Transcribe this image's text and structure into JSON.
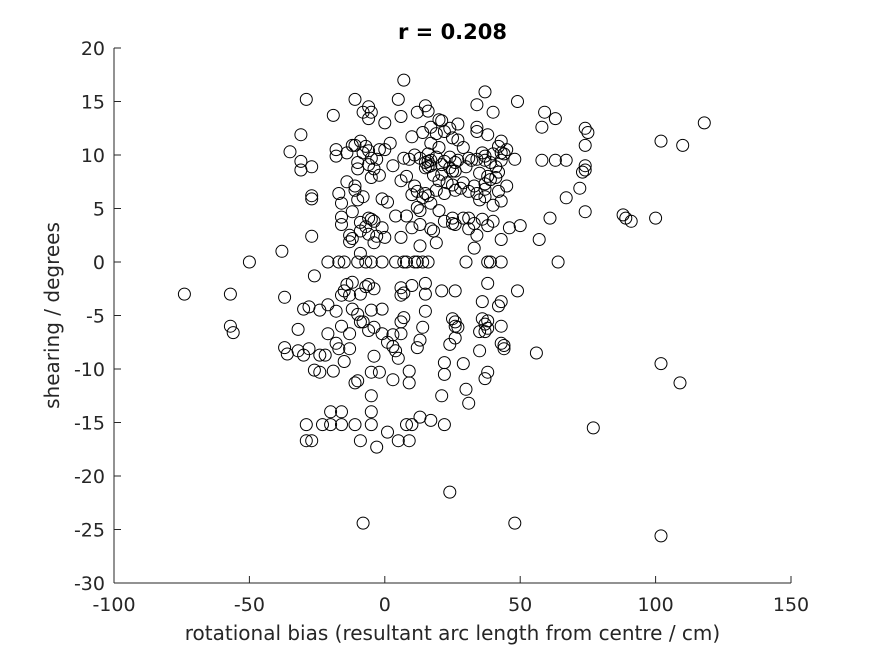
{
  "chart_data": {
    "type": "scatter",
    "title": "r = 0.208",
    "xlabel": "rotational bias (resultant arc length from centre / cm)",
    "ylabel": "shearing / degrees",
    "xlim": [
      -100,
      150
    ],
    "ylim": [
      -30,
      20
    ],
    "xticks": [
      -100,
      -50,
      0,
      50,
      100,
      150
    ],
    "xtick_labels": [
      "-100",
      "-50",
      "0",
      "50",
      "100",
      "150"
    ],
    "yticks": [
      -30,
      -25,
      -20,
      -15,
      -10,
      -5,
      0,
      5,
      10,
      15,
      20
    ],
    "ytick_labels": [
      "-30",
      "-25",
      "-20",
      "-15",
      "-10",
      "-5",
      "0",
      "5",
      "10",
      "15",
      "20"
    ],
    "grid": false,
    "marker": "open-circle",
    "marker_color": "#000000",
    "axis_color": "#262626",
    "points": [
      [
        -74,
        -3
      ],
      [
        -57,
        -3
      ],
      [
        -57,
        -6
      ],
      [
        -56,
        -6.6
      ],
      [
        -50,
        0
      ],
      [
        -38,
        1
      ],
      [
        -37,
        -3.3
      ],
      [
        -37,
        -8
      ],
      [
        -36,
        -8.6
      ],
      [
        -35,
        10.3
      ],
      [
        -32,
        -8.3
      ],
      [
        -32,
        -6.3
      ],
      [
        -31,
        11.9
      ],
      [
        -31,
        9.4
      ],
      [
        -31,
        8.6
      ],
      [
        -30,
        -8.7
      ],
      [
        -30,
        -4.4
      ],
      [
        -29,
        15.2
      ],
      [
        -29,
        -15.2
      ],
      [
        -29,
        -16.7
      ],
      [
        -28,
        -8.1
      ],
      [
        -28,
        -4.2
      ],
      [
        -27,
        -16.7
      ],
      [
        -27,
        6.2
      ],
      [
        -27,
        5.9
      ],
      [
        -27,
        2.4
      ],
      [
        -27,
        8.9
      ],
      [
        -26,
        -1.3
      ],
      [
        -26,
        -10.1
      ],
      [
        -24,
        -10.3
      ],
      [
        -24,
        -8.7
      ],
      [
        -24,
        -4.5
      ],
      [
        -23,
        -15.2
      ],
      [
        -22,
        -8.7
      ],
      [
        -21,
        0
      ],
      [
        -21,
        -4
      ],
      [
        -21,
        -6.7
      ],
      [
        -20,
        -14
      ],
      [
        -20,
        -15.2
      ],
      [
        -19,
        13.7
      ],
      [
        -19,
        -10.2
      ],
      [
        -18,
        9.9
      ],
      [
        -18,
        10.5
      ],
      [
        -18,
        -4.6
      ],
      [
        -18,
        -7.6
      ],
      [
        -17,
        6.4
      ],
      [
        -17,
        0
      ],
      [
        -17,
        -8.1
      ],
      [
        -16,
        4.2
      ],
      [
        -16,
        3.5
      ],
      [
        -16,
        5.5
      ],
      [
        -16,
        -3.1
      ],
      [
        -16,
        -6
      ],
      [
        -16,
        -14
      ],
      [
        -16,
        -15.2
      ],
      [
        -15,
        0
      ],
      [
        -15,
        -2.7
      ],
      [
        -15,
        -9.3
      ],
      [
        -14,
        10.2
      ],
      [
        -14,
        -2.1
      ],
      [
        -14,
        7.5
      ],
      [
        -13,
        2.5
      ],
      [
        -13,
        1.9
      ],
      [
        -13,
        -3.1
      ],
      [
        -13,
        -6.7
      ],
      [
        -13,
        -8.1
      ],
      [
        -12,
        10.9
      ],
      [
        -12,
        2.2
      ],
      [
        -12,
        4.7
      ],
      [
        -12,
        -1.9
      ],
      [
        -12,
        -4.4
      ],
      [
        -11,
        15.2
      ],
      [
        -11,
        10.9
      ],
      [
        -11,
        7.1
      ],
      [
        -11,
        6.7
      ],
      [
        -11,
        -11.3
      ],
      [
        -11,
        -15.2
      ],
      [
        -10,
        9.3
      ],
      [
        -10,
        8.7
      ],
      [
        -10,
        5.8
      ],
      [
        -10,
        0
      ],
      [
        -10,
        -11.1
      ],
      [
        -10,
        -4.9
      ],
      [
        -9,
        11.3
      ],
      [
        -9,
        3.7
      ],
      [
        -9,
        2.9
      ],
      [
        -9,
        0.8
      ],
      [
        -9,
        -3
      ],
      [
        -9,
        -5.6
      ],
      [
        -9,
        -16.7
      ],
      [
        -8,
        14
      ],
      [
        -8,
        10.2
      ],
      [
        -8,
        6.1
      ],
      [
        -8,
        -24.4
      ],
      [
        -8,
        -5.6
      ],
      [
        -7,
        10.8
      ],
      [
        -7,
        3.3
      ],
      [
        -7,
        0
      ],
      [
        -7,
        -2.3
      ],
      [
        -6,
        14.5
      ],
      [
        -6,
        13.4
      ],
      [
        -6,
        10.4
      ],
      [
        -6,
        9.1
      ],
      [
        -6,
        4.1
      ],
      [
        -6,
        2.6
      ],
      [
        -6,
        -2.1
      ],
      [
        -6,
        -6.4
      ],
      [
        -5,
        14
      ],
      [
        -5,
        9.7
      ],
      [
        -5,
        7.9
      ],
      [
        -5,
        4
      ],
      [
        -5,
        0
      ],
      [
        -5,
        -4.5
      ],
      [
        -5,
        -10.3
      ],
      [
        -5,
        -14
      ],
      [
        -5,
        -15.2
      ],
      [
        -5,
        -12.5
      ],
      [
        -4,
        8.7
      ],
      [
        -4,
        3.8
      ],
      [
        -4,
        1.8
      ],
      [
        -4,
        -2.5
      ],
      [
        -4,
        -6.1
      ],
      [
        -4,
        -8.8
      ],
      [
        -3,
        9.6
      ],
      [
        -3,
        2.4
      ],
      [
        -3,
        -17.3
      ],
      [
        -2,
        10.5
      ],
      [
        -2,
        8.1
      ],
      [
        -2,
        -10.3
      ],
      [
        -1,
        5.9
      ],
      [
        -1,
        3.2
      ],
      [
        -1,
        0
      ],
      [
        -1,
        -4.4
      ],
      [
        -1,
        -6.7
      ],
      [
        0,
        13
      ],
      [
        0,
        10.5
      ],
      [
        0,
        2.3
      ],
      [
        1,
        5.6
      ],
      [
        1,
        -7.5
      ],
      [
        1,
        -15.9
      ],
      [
        2,
        11.1
      ],
      [
        3,
        9
      ],
      [
        3,
        -6.8
      ],
      [
        3,
        -7.9
      ],
      [
        3,
        -11
      ],
      [
        4,
        4.3
      ],
      [
        4,
        0
      ],
      [
        4,
        -8.3
      ],
      [
        5,
        15.2
      ],
      [
        5,
        -9
      ],
      [
        5,
        -16.7
      ],
      [
        6,
        13.6
      ],
      [
        6,
        7.6
      ],
      [
        6,
        2.3
      ],
      [
        6,
        -2.4
      ],
      [
        6,
        -3.1
      ],
      [
        6,
        -5.6
      ],
      [
        6,
        -6.7
      ],
      [
        7,
        17
      ],
      [
        7,
        9.7
      ],
      [
        7,
        0
      ],
      [
        7,
        -2.9
      ],
      [
        7,
        -5.2
      ],
      [
        8,
        8
      ],
      [
        8,
        4.3
      ],
      [
        8,
        0
      ],
      [
        8,
        -15.2
      ],
      [
        9,
        9.6
      ],
      [
        9,
        -11.3
      ],
      [
        9,
        -16.7
      ],
      [
        9,
        -10.2
      ],
      [
        10,
        11.7
      ],
      [
        10,
        6.3
      ],
      [
        10,
        3.2
      ],
      [
        10,
        -2.2
      ],
      [
        10,
        -15.2
      ],
      [
        11,
        10
      ],
      [
        11,
        7.1
      ],
      [
        11,
        0
      ],
      [
        12,
        14
      ],
      [
        12,
        6.6
      ],
      [
        12,
        5.1
      ],
      [
        12,
        0
      ],
      [
        12,
        -8
      ],
      [
        13,
        9.7
      ],
      [
        13,
        4.8
      ],
      [
        13,
        3.5
      ],
      [
        13,
        1.5
      ],
      [
        13,
        -7.3
      ],
      [
        13,
        -14.5
      ],
      [
        14,
        12.1
      ],
      [
        14,
        6
      ],
      [
        14,
        0
      ],
      [
        14,
        -6.1
      ],
      [
        15,
        14.6
      ],
      [
        15,
        9.3
      ],
      [
        15,
        8.8
      ],
      [
        15,
        6.4
      ],
      [
        15,
        -2
      ],
      [
        15,
        -3
      ],
      [
        15,
        -4.6
      ],
      [
        16,
        14.1
      ],
      [
        16,
        10.1
      ],
      [
        16,
        9.4
      ],
      [
        16,
        8.9
      ],
      [
        16,
        6.2
      ],
      [
        16,
        0
      ],
      [
        17,
        12.6
      ],
      [
        17,
        11.1
      ],
      [
        17,
        9.5
      ],
      [
        17,
        9
      ],
      [
        17,
        5.5
      ],
      [
        17,
        3.1
      ],
      [
        17,
        -14.8
      ],
      [
        18,
        8.1
      ],
      [
        18,
        2.9
      ],
      [
        19,
        12
      ],
      [
        19,
        9.8
      ],
      [
        19,
        6.7
      ],
      [
        19,
        1.8
      ],
      [
        20,
        13.3
      ],
      [
        20,
        10.7
      ],
      [
        20,
        7.6
      ],
      [
        20,
        4.8
      ],
      [
        21,
        13.2
      ],
      [
        21,
        9.1
      ],
      [
        21,
        8.2
      ],
      [
        21,
        -2.7
      ],
      [
        21,
        -12.5
      ],
      [
        22,
        12.2
      ],
      [
        22,
        9.4
      ],
      [
        22,
        6.4
      ],
      [
        22,
        3.8
      ],
      [
        22,
        -15.2
      ],
      [
        22,
        -9.4
      ],
      [
        22,
        -10.5
      ],
      [
        23,
        7.4
      ],
      [
        24,
        12.5
      ],
      [
        24,
        9.8
      ],
      [
        24,
        8.8
      ],
      [
        24,
        -7.7
      ],
      [
        24,
        -21.5
      ],
      [
        25,
        11.6
      ],
      [
        25,
        8.5
      ],
      [
        25,
        7.2
      ],
      [
        25,
        4.1
      ],
      [
        25,
        3.6
      ],
      [
        25,
        -5.3
      ],
      [
        26,
        9.3
      ],
      [
        26,
        8.5
      ],
      [
        26,
        6.7
      ],
      [
        26,
        3.5
      ],
      [
        26,
        -2.7
      ],
      [
        26,
        -5.6
      ],
      [
        26,
        -6
      ],
      [
        26,
        -7.1
      ],
      [
        27,
        12.9
      ],
      [
        27,
        11.4
      ],
      [
        27,
        9.5
      ],
      [
        27,
        -6.1
      ],
      [
        28,
        6.9
      ],
      [
        29,
        10.7
      ],
      [
        29,
        7.4
      ],
      [
        29,
        4.1
      ],
      [
        29,
        -9.5
      ],
      [
        30,
        8.9
      ],
      [
        30,
        0
      ],
      [
        30,
        -11.9
      ],
      [
        31,
        9.7
      ],
      [
        31,
        6.6
      ],
      [
        31,
        4.1
      ],
      [
        31,
        3.1
      ],
      [
        31,
        -13.2
      ],
      [
        32,
        9.5
      ],
      [
        33,
        7.1
      ],
      [
        33,
        3.6
      ],
      [
        33,
        1.3
      ],
      [
        34,
        14.7
      ],
      [
        34,
        12.6
      ],
      [
        34,
        12.2
      ],
      [
        34,
        9.6
      ],
      [
        34,
        6.4
      ],
      [
        34,
        2.5
      ],
      [
        35,
        8.3
      ],
      [
        35,
        5.8
      ],
      [
        35,
        -6.5
      ],
      [
        35,
        -8.3
      ],
      [
        36,
        10.2
      ],
      [
        36,
        4
      ],
      [
        36,
        -3.7
      ],
      [
        36,
        -5.3
      ],
      [
        37,
        15.9
      ],
      [
        37,
        9.9
      ],
      [
        37,
        9.5
      ],
      [
        37,
        7.3
      ],
      [
        37,
        6.8
      ],
      [
        37,
        6.1
      ],
      [
        37,
        -5.8
      ],
      [
        37,
        -6.5
      ],
      [
        37,
        -10.9
      ],
      [
        38,
        11.9
      ],
      [
        38,
        8
      ],
      [
        38,
        3.4
      ],
      [
        38,
        0
      ],
      [
        38,
        -2
      ],
      [
        38,
        -5.5
      ],
      [
        38,
        -6.2
      ],
      [
        38,
        -10.3
      ],
      [
        39,
        9.3
      ],
      [
        39,
        7.7
      ],
      [
        39,
        0
      ],
      [
        40,
        14
      ],
      [
        40,
        10.1
      ],
      [
        40,
        5.3
      ],
      [
        40,
        3.8
      ],
      [
        41,
        8.9
      ],
      [
        41,
        7.9
      ],
      [
        42,
        10.8
      ],
      [
        42,
        8.4
      ],
      [
        42,
        6.6
      ],
      [
        42,
        -4.1
      ],
      [
        43,
        11.3
      ],
      [
        43,
        10.2
      ],
      [
        43,
        9.5
      ],
      [
        43,
        5.7
      ],
      [
        43,
        2.1
      ],
      [
        43,
        0
      ],
      [
        43,
        -3.7
      ],
      [
        43,
        -6
      ],
      [
        43,
        -7.6
      ],
      [
        44,
        10.1
      ],
      [
        44,
        -7.8
      ],
      [
        44,
        -8.1
      ],
      [
        45,
        7.1
      ],
      [
        45,
        10.5
      ],
      [
        46,
        3.2
      ],
      [
        48,
        9.6
      ],
      [
        48,
        -24.4
      ],
      [
        49,
        15
      ],
      [
        49,
        -2.7
      ],
      [
        50,
        3.4
      ],
      [
        56,
        -8.5
      ],
      [
        57,
        2.1
      ],
      [
        58,
        9.5
      ],
      [
        58,
        12.6
      ],
      [
        59,
        14
      ],
      [
        61,
        4.1
      ],
      [
        63,
        13.4
      ],
      [
        63,
        9.5
      ],
      [
        64,
        0
      ],
      [
        67,
        9.5
      ],
      [
        67,
        6
      ],
      [
        72,
        6.9
      ],
      [
        73,
        8.4
      ],
      [
        74,
        12.5
      ],
      [
        74,
        10.9
      ],
      [
        74,
        9
      ],
      [
        74,
        8.6
      ],
      [
        74,
        4.7
      ],
      [
        75,
        12.1
      ],
      [
        77,
        -15.5
      ],
      [
        88,
        4.4
      ],
      [
        89,
        4.1
      ],
      [
        91,
        3.8
      ],
      [
        100,
        4.1
      ],
      [
        102,
        11.3
      ],
      [
        102,
        -9.5
      ],
      [
        102,
        -25.6
      ],
      [
        109,
        -11.3
      ],
      [
        110,
        10.9
      ],
      [
        118,
        13
      ]
    ]
  }
}
